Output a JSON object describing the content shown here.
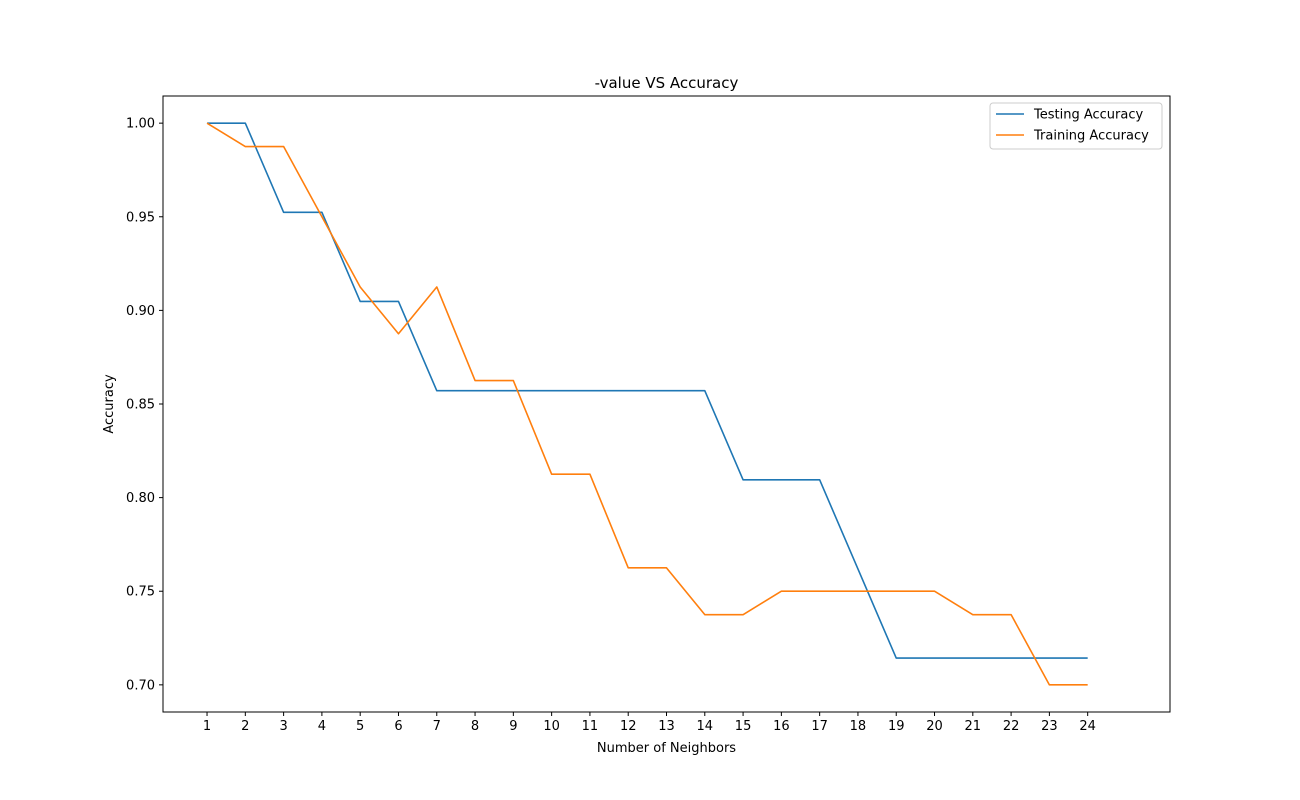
{
  "chart_data": {
    "type": "line",
    "title": "-value VS Accuracy",
    "xlabel": "Number of Neighbors",
    "ylabel": "Accuracy",
    "x": [
      1,
      2,
      3,
      4,
      5,
      6,
      7,
      8,
      9,
      10,
      11,
      12,
      13,
      14,
      15,
      16,
      17,
      18,
      19,
      20,
      21,
      22,
      23,
      24
    ],
    "xlim": [
      -0.15,
      26.15
    ],
    "ylim": [
      0.6855,
      1.0145
    ],
    "yticks": [
      0.7,
      0.75,
      0.8,
      0.85,
      0.9,
      0.95,
      1.0
    ],
    "ytick_labels": [
      "0.70",
      "0.75",
      "0.80",
      "0.85",
      "0.90",
      "0.95",
      "1.00"
    ],
    "xtick_labels": [
      "1",
      "2",
      "3",
      "4",
      "5",
      "6",
      "7",
      "8",
      "9",
      "10",
      "11",
      "12",
      "13",
      "14",
      "15",
      "16",
      "17",
      "18",
      "19",
      "20",
      "21",
      "22",
      "23",
      "24"
    ],
    "grid": false,
    "legend_position": "top-right",
    "series": [
      {
        "name": "Testing Accuracy",
        "color": "#1f77b4",
        "values": [
          1.0,
          1.0,
          0.9524,
          0.9524,
          0.9048,
          0.9048,
          0.8571,
          0.8571,
          0.8571,
          0.8571,
          0.8571,
          0.8571,
          0.8571,
          0.8571,
          0.8095,
          0.8095,
          0.8095,
          0.7619,
          0.7143,
          0.7143,
          0.7143,
          0.7143,
          0.7143,
          0.7143
        ]
      },
      {
        "name": "Training Accuracy",
        "color": "#ff7f0e",
        "values": [
          1.0,
          0.9875,
          0.9875,
          0.95,
          0.9125,
          0.8875,
          0.9125,
          0.8625,
          0.8625,
          0.8125,
          0.8125,
          0.7625,
          0.7625,
          0.7375,
          0.7375,
          0.75,
          0.75,
          0.75,
          0.75,
          0.75,
          0.7375,
          0.7375,
          0.7,
          0.7
        ]
      }
    ]
  }
}
